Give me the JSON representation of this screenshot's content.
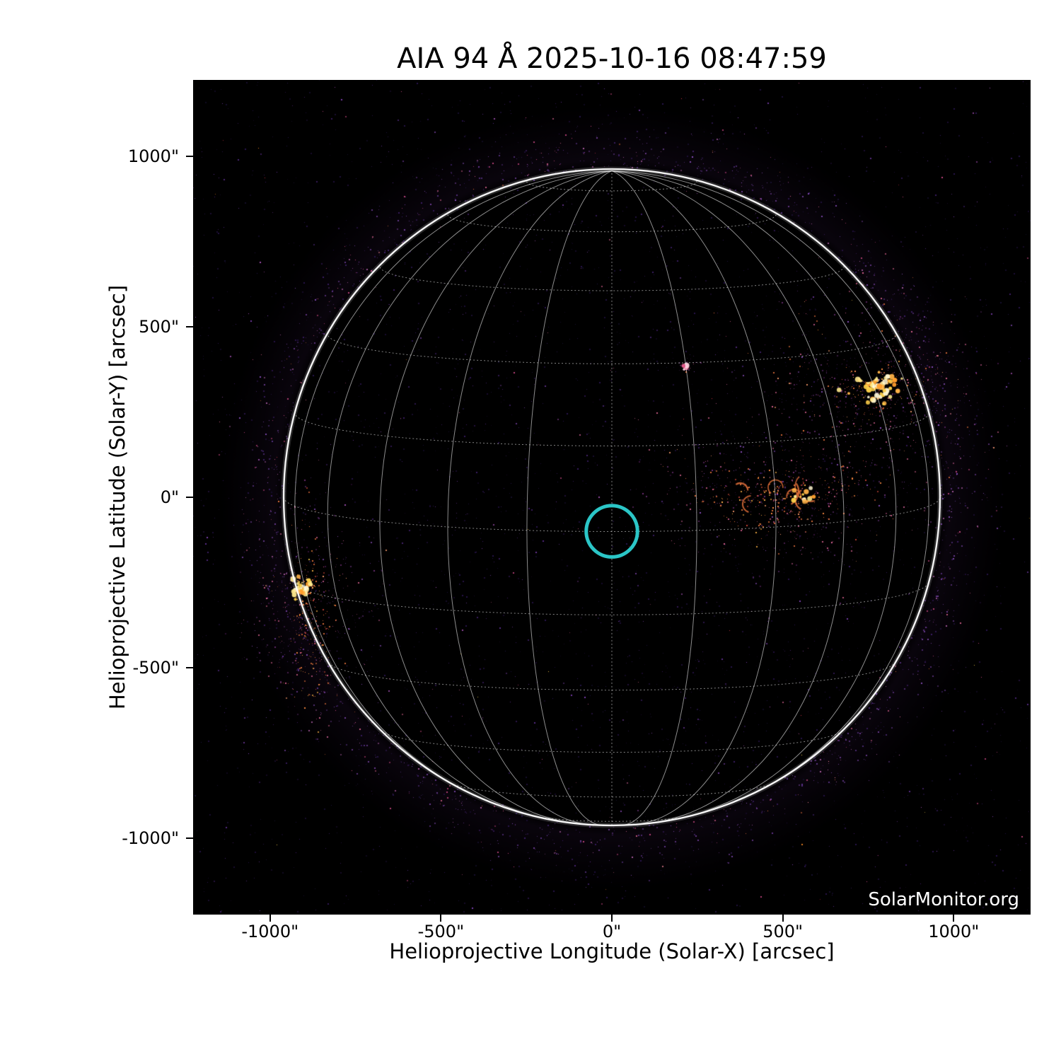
{
  "title": "AIA 94 Å 2025-10-16 08:47:59",
  "watermark": "SolarMonitor.org",
  "chart_data": {
    "type": "heatmap",
    "subtype": "solar-euv-image",
    "instrument": "AIA",
    "wavelength_label": "94 Å",
    "observed_datetime": "2025-10-16 08:47:59",
    "xlabel": "Helioprojective Longitude (Solar-X) [arcsec]",
    "ylabel": "Helioprojective Latitude (Solar-Y) [arcsec]",
    "xlim": [
      -1225,
      1225
    ],
    "ylim": [
      -1225,
      1225
    ],
    "xticks": {
      "values": [
        -1000,
        -500,
        0,
        500,
        1000
      ],
      "labels": [
        "-1000\"",
        "-500\"",
        "0\"",
        "500\"",
        "1000\""
      ]
    },
    "yticks": {
      "values": [
        1000,
        500,
        0,
        -500,
        -1000
      ],
      "labels": [
        "1000\"",
        "500\"",
        "0\"",
        "-500\"",
        "-1000\""
      ]
    },
    "solar_radius_arcsec": 960,
    "grid": {
      "spacing_deg": 15,
      "b0_deg": 6,
      "on": true
    },
    "fov_marker": {
      "x_arcsec": 0,
      "y_arcsec": -100,
      "radius_arcsec": 75,
      "color": "#2bc6c7",
      "stroke_px": 5
    },
    "active_regions": [
      {
        "id": "AR-northwest",
        "x_arcsec": 770,
        "y_arcsec": 330,
        "core": {
          "n": 70,
          "sx": 33,
          "sy": 25
        },
        "mid": {
          "n": 95,
          "sx": 62,
          "sy": 45
        },
        "halo": {
          "n": 620,
          "sx": 145,
          "sy": 112
        },
        "void": {
          "dx": -21,
          "dy": 35,
          "r": 27
        },
        "arcs": 0
      },
      {
        "id": "AR-west-loops",
        "x_arcsec": 505,
        "y_arcsec": 5,
        "core": {
          "n": 14,
          "sx": 18,
          "sy": 10,
          "dx": 55
        },
        "mid": {
          "n": 230,
          "sx": 115,
          "sy": 45
        },
        "halo": {
          "n": 470,
          "sx": 190,
          "sy": 112
        },
        "arcs": 7
      },
      {
        "id": "AR-east-limb",
        "x_arcsec": -905,
        "y_arcsec": -260,
        "core": {
          "n": 30,
          "sx": 15,
          "sy": 13
        },
        "mid": {
          "n": 150,
          "sx": 30,
          "sy": 125,
          "cx": -880,
          "cy": -385
        },
        "halo": {
          "n": 330,
          "sx": 95,
          "sy": 155,
          "cx": -890,
          "cy": -330
        },
        "arcs": 0
      },
      {
        "id": "bright-point",
        "x_arcsec": 217,
        "y_arcsec": 385,
        "palette": "pink",
        "core": {
          "n": 5,
          "sx": 6,
          "sy": 4
        },
        "mid": {
          "n": 0,
          "sx": 0,
          "sy": 0
        },
        "halo": {
          "n": 24,
          "sx": 18,
          "sy": 14
        },
        "arcs": 0
      }
    ],
    "colors": {
      "background": "#000000",
      "page": "#ffffff",
      "grid": "#ffffff",
      "limb": "#ffffff",
      "fov": "#2bc6c7",
      "text": "#000000",
      "watermark": "#ffffff"
    }
  }
}
